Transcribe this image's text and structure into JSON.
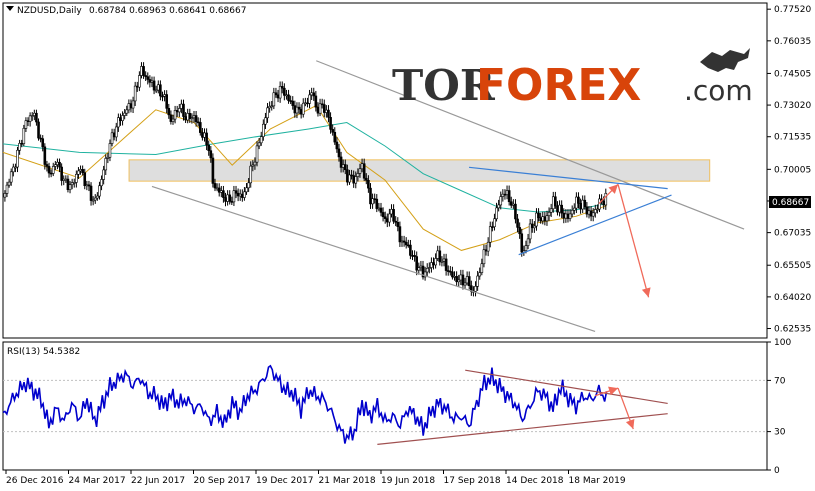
{
  "chart_data": [
    {
      "type": "candlestick",
      "symbol_header": "NZDUSD,Daily",
      "ohlc_header": "0.68784 0.68963 0.68641 0.68667",
      "current_price_label": "0.68667",
      "y_ticks": [
        "0.77520",
        "0.76035",
        "0.74505",
        "0.73020",
        "0.71535",
        "0.70005",
        "0.68520",
        "0.67035",
        "0.65505",
        "0.64020",
        "0.62535"
      ],
      "ylim": [
        0.6209,
        0.7781
      ],
      "x_ticks": [
        "26 Dec 2016",
        "24 Mar 2017",
        "22 Jun 2017",
        "20 Sep 2017",
        "19 Dec 2017",
        "21 Mar 2018",
        "19 Jun 2018",
        "17 Sep 2018",
        "14 Dec 2018",
        "18 Mar 2019"
      ],
      "close_path": [
        [
          0,
          0.687
        ],
        [
          3,
          0.702
        ],
        [
          6,
          0.722
        ],
        [
          8,
          0.727
        ],
        [
          10,
          0.712
        ],
        [
          12,
          0.697
        ],
        [
          14,
          0.704
        ],
        [
          16,
          0.694
        ],
        [
          18,
          0.692
        ],
        [
          20,
          0.701
        ],
        [
          22,
          0.692
        ],
        [
          24,
          0.684
        ],
        [
          26,
          0.697
        ],
        [
          28,
          0.712
        ],
        [
          30,
          0.722
        ],
        [
          32,
          0.727
        ],
        [
          34,
          0.732
        ],
        [
          36,
          0.747
        ],
        [
          38,
          0.742
        ],
        [
          40,
          0.738
        ],
        [
          42,
          0.735
        ],
        [
          44,
          0.722
        ],
        [
          46,
          0.73
        ],
        [
          48,
          0.724
        ],
        [
          50,
          0.725
        ],
        [
          52,
          0.717
        ],
        [
          54,
          0.71
        ],
        [
          55,
          0.693
        ],
        [
          57,
          0.689
        ],
        [
          59,
          0.685
        ],
        [
          61,
          0.689
        ],
        [
          63,
          0.687
        ],
        [
          65,
          0.7
        ],
        [
          67,
          0.712
        ],
        [
          69,
          0.727
        ],
        [
          71,
          0.734
        ],
        [
          73,
          0.738
        ],
        [
          75,
          0.732
        ],
        [
          77,
          0.727
        ],
        [
          79,
          0.73
        ],
        [
          81,
          0.737
        ],
        [
          82,
          0.728
        ],
        [
          84,
          0.73
        ],
        [
          86,
          0.719
        ],
        [
          88,
          0.705
        ],
        [
          90,
          0.697
        ],
        [
          92,
          0.695
        ],
        [
          94,
          0.702
        ],
        [
          96,
          0.687
        ],
        [
          98,
          0.683
        ],
        [
          100,
          0.676
        ],
        [
          102,
          0.68
        ],
        [
          104,
          0.667
        ],
        [
          106,
          0.664
        ],
        [
          108,
          0.656
        ],
        [
          110,
          0.651
        ],
        [
          112,
          0.655
        ],
        [
          114,
          0.66
        ],
        [
          116,
          0.654
        ],
        [
          118,
          0.649
        ],
        [
          120,
          0.648
        ],
        [
          122,
          0.647
        ],
        [
          123,
          0.641
        ],
        [
          125,
          0.654
        ],
        [
          127,
          0.667
        ],
        [
          129,
          0.68
        ],
        [
          131,
          0.69
        ],
        [
          133,
          0.685
        ],
        [
          135,
          0.672
        ],
        [
          136,
          0.659
        ],
        [
          138,
          0.672
        ],
        [
          140,
          0.678
        ],
        [
          142,
          0.676
        ],
        [
          144,
          0.685
        ],
        [
          146,
          0.68
        ],
        [
          148,
          0.677
        ],
        [
          150,
          0.685
        ],
        [
          152,
          0.683
        ],
        [
          154,
          0.678
        ],
        [
          156,
          0.684
        ],
        [
          158,
          0.687
        ]
      ],
      "moving_averages": [
        {
          "color": "#20b2a0",
          "points": [
            [
              0,
              0.712
            ],
            [
              20,
              0.708
            ],
            [
              40,
              0.707
            ],
            [
              55,
              0.712
            ],
            [
              65,
              0.715
            ],
            [
              80,
              0.719
            ],
            [
              90,
              0.722
            ],
            [
              100,
              0.711
            ],
            [
              110,
              0.698
            ],
            [
              120,
              0.69
            ],
            [
              130,
              0.682
            ],
            [
              140,
              0.68
            ],
            [
              150,
              0.681
            ],
            [
              158,
              0.684
            ]
          ]
        },
        {
          "color": "#d4a017",
          "points": [
            [
              0,
              0.708
            ],
            [
              20,
              0.696
            ],
            [
              30,
              0.712
            ],
            [
              40,
              0.728
            ],
            [
              50,
              0.722
            ],
            [
              60,
              0.702
            ],
            [
              70,
              0.719
            ],
            [
              82,
              0.73
            ],
            [
              90,
              0.708
            ],
            [
              100,
              0.695
            ],
            [
              110,
              0.672
            ],
            [
              120,
              0.662
            ],
            [
              130,
              0.667
            ],
            [
              140,
              0.675
            ],
            [
              150,
              0.678
            ],
            [
              158,
              0.683
            ]
          ]
        }
      ],
      "zone": {
        "x": [
          33,
          185
        ],
        "y": [
          0.6945,
          0.7045
        ],
        "fill": "#d8d8d8",
        "stroke": "#f0c060"
      },
      "trend_lines": [
        {
          "color": "#999999",
          "from": [
            82,
            0.751
          ],
          "to": [
            194,
            0.672
          ]
        },
        {
          "color": "#999999",
          "from": [
            39,
            0.692
          ],
          "to": [
            155,
            0.624
          ]
        },
        {
          "color": "#3a7fd5",
          "from": [
            122,
            0.701
          ],
          "to": [
            174,
            0.691
          ]
        },
        {
          "color": "#3a7fd5",
          "from": [
            135,
            0.66
          ],
          "to": [
            175,
            0.688
          ]
        }
      ],
      "arrows": [
        {
          "color": "#f06a5a",
          "from": [
            156,
            0.684
          ],
          "to": [
            161,
            0.693
          ]
        },
        {
          "color": "#f06a5a",
          "from": [
            161,
            0.693
          ],
          "to": [
            169,
            0.64
          ]
        }
      ]
    },
    {
      "type": "line",
      "indicator_label": "RSI(13) 54.5382",
      "y_ticks": [
        "100",
        "70",
        "30",
        "0"
      ],
      "ylim": [
        0,
        100
      ],
      "series": [
        {
          "color": "#0000cc",
          "points": [
            [
              0,
              42
            ],
            [
              3,
              58
            ],
            [
              6,
              68
            ],
            [
              8,
              62
            ],
            [
              10,
              55
            ],
            [
              12,
              35
            ],
            [
              14,
              48
            ],
            [
              16,
              38
            ],
            [
              18,
              52
            ],
            [
              20,
              40
            ],
            [
              22,
              55
            ],
            [
              24,
              38
            ],
            [
              26,
              52
            ],
            [
              28,
              65
            ],
            [
              30,
              70
            ],
            [
              32,
              75
            ],
            [
              34,
              66
            ],
            [
              36,
              72
            ],
            [
              38,
              60
            ],
            [
              40,
              58
            ],
            [
              42,
              50
            ],
            [
              44,
              58
            ],
            [
              46,
              52
            ],
            [
              48,
              55
            ],
            [
              50,
              48
            ],
            [
              52,
              50
            ],
            [
              54,
              38
            ],
            [
              56,
              45
            ],
            [
              58,
              36
            ],
            [
              60,
              52
            ],
            [
              62,
              45
            ],
            [
              64,
              58
            ],
            [
              66,
              62
            ],
            [
              68,
              70
            ],
            [
              70,
              80
            ],
            [
              72,
              70
            ],
            [
              74,
              62
            ],
            [
              76,
              60
            ],
            [
              78,
              48
            ],
            [
              80,
              62
            ],
            [
              82,
              58
            ],
            [
              84,
              55
            ],
            [
              86,
              45
            ],
            [
              88,
              32
            ],
            [
              90,
              25
            ],
            [
              92,
              30
            ],
            [
              94,
              52
            ],
            [
              96,
              42
            ],
            [
              98,
              50
            ],
            [
              100,
              38
            ],
            [
              102,
              42
            ],
            [
              104,
              35
            ],
            [
              106,
              48
            ],
            [
              108,
              42
            ],
            [
              110,
              32
            ],
            [
              112,
              45
            ],
            [
              114,
              52
            ],
            [
              116,
              48
            ],
            [
              118,
              40
            ],
            [
              120,
              42
            ],
            [
              122,
              35
            ],
            [
              124,
              52
            ],
            [
              126,
              68
            ],
            [
              128,
              72
            ],
            [
              130,
              65
            ],
            [
              132,
              58
            ],
            [
              134,
              52
            ],
            [
              136,
              40
            ],
            [
              138,
              50
            ],
            [
              140,
              62
            ],
            [
              142,
              58
            ],
            [
              144,
              48
            ],
            [
              146,
              65
            ],
            [
              148,
              56
            ],
            [
              150,
              50
            ],
            [
              152,
              58
            ],
            [
              154,
              55
            ],
            [
              156,
              62
            ],
            [
              158,
              56
            ]
          ]
        }
      ],
      "trend_lines": [
        {
          "color": "#a05050",
          "from": [
            121,
            78
          ],
          "to": [
            174,
            52
          ]
        },
        {
          "color": "#a05050",
          "from": [
            98,
            20
          ],
          "to": [
            174,
            44
          ]
        }
      ],
      "arrows": [
        {
          "color": "#f06a5a",
          "from": [
            155,
            58
          ],
          "to": [
            161,
            64
          ]
        },
        {
          "color": "#f06a5a",
          "from": [
            161,
            64
          ],
          "to": [
            165,
            32
          ]
        }
      ]
    }
  ],
  "watermark": {
    "text_part1": "TOR",
    "text_part2": "FOREX",
    "text_part3": ".com",
    "color_dark": "#333333",
    "color_accent": "#d8440a"
  }
}
